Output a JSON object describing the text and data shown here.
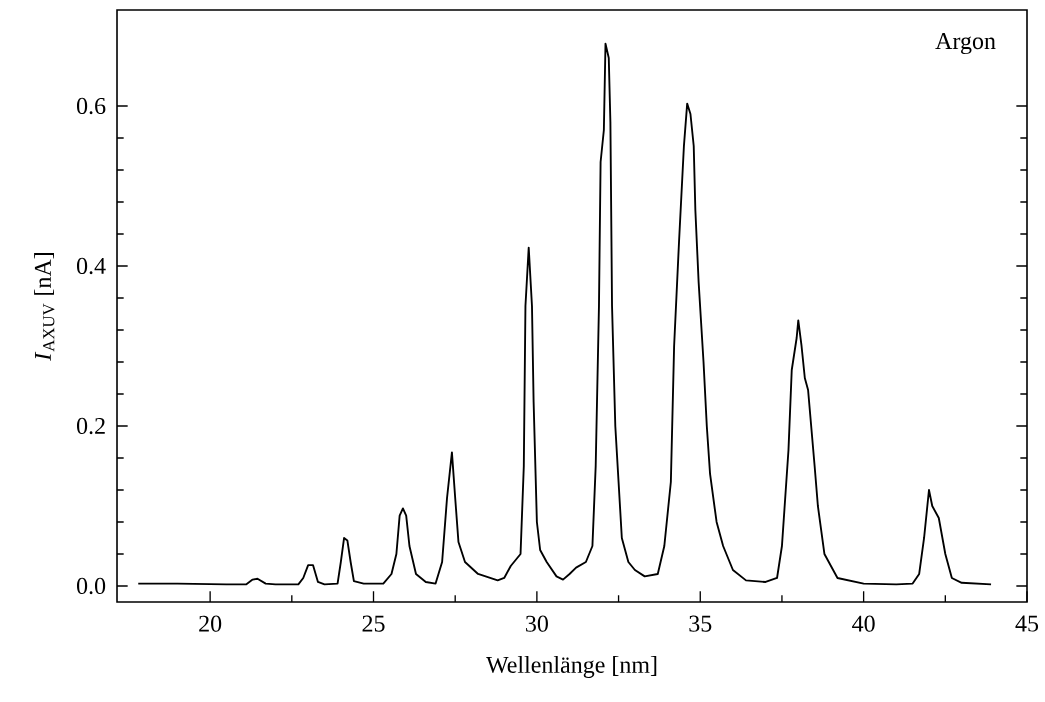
{
  "chart_data": {
    "type": "line",
    "xlabel": "Wellenlänge [nm]",
    "ylabel": "*I*$_{AXUV}$ [nA]",
    "annotations": [
      "Argon"
    ],
    "xlim": [
      17.15,
      45
    ],
    "ylim": [
      -0.02,
      0.72
    ],
    "xticks": [
      20,
      25,
      30,
      35,
      40,
      45
    ],
    "yticks": [
      {
        "value": 0,
        "label": "0.0"
      },
      {
        "value": 0.2,
        "label": "0.2"
      },
      {
        "value": 0.4,
        "label": "0.4"
      },
      {
        "value": 0.6,
        "label": "0.6"
      }
    ],
    "color": "#000000",
    "line_style": "solid",
    "grid": false,
    "x": [
      17.8,
      19.0,
      20.5,
      21.1,
      21.3,
      21.45,
      21.7,
      22.0,
      22.7,
      22.85,
      23.0,
      23.15,
      23.3,
      23.5,
      23.9,
      24.0,
      24.1,
      24.2,
      24.3,
      24.4,
      24.7,
      25.3,
      25.55,
      25.7,
      25.8,
      25.9,
      26.0,
      26.1,
      26.3,
      26.6,
      26.9,
      27.1,
      27.25,
      27.4,
      27.5,
      27.6,
      27.8,
      28.2,
      28.8,
      29.0,
      29.2,
      29.5,
      29.6,
      29.65,
      29.75,
      29.85,
      29.9,
      30.0,
      30.1,
      30.3,
      30.6,
      30.8,
      31.0,
      31.2,
      31.5,
      31.7,
      31.8,
      31.9,
      31.95,
      32.05,
      32.1,
      32.2,
      32.25,
      32.3,
      32.4,
      32.5,
      32.6,
      32.8,
      33.0,
      33.3,
      33.7,
      33.9,
      34.1,
      34.2,
      34.35,
      34.5,
      34.6,
      34.7,
      34.8,
      34.85,
      34.95,
      35.1,
      35.2,
      35.3,
      35.5,
      35.7,
      36.0,
      36.4,
      37.0,
      37.35,
      37.5,
      37.7,
      37.8,
      37.95,
      38.0,
      38.1,
      38.2,
      38.3,
      38.5,
      38.6,
      38.8,
      39.2,
      40.0,
      41.0,
      41.5,
      41.7,
      41.85,
      42.0,
      42.1,
      42.3,
      42.5,
      42.7,
      43.0,
      43.9
    ],
    "values": [
      0.003,
      0.003,
      0.002,
      0.002,
      0.008,
      0.009,
      0.003,
      0.002,
      0.002,
      0.01,
      0.026,
      0.026,
      0.005,
      0.002,
      0.003,
      0.03,
      0.06,
      0.057,
      0.03,
      0.006,
      0.003,
      0.003,
      0.015,
      0.04,
      0.088,
      0.097,
      0.088,
      0.05,
      0.015,
      0.005,
      0.003,
      0.03,
      0.11,
      0.167,
      0.11,
      0.055,
      0.03,
      0.015,
      0.007,
      0.01,
      0.025,
      0.04,
      0.15,
      0.35,
      0.423,
      0.35,
      0.23,
      0.08,
      0.045,
      0.03,
      0.012,
      0.008,
      0.015,
      0.023,
      0.03,
      0.05,
      0.15,
      0.35,
      0.53,
      0.57,
      0.678,
      0.66,
      0.58,
      0.35,
      0.2,
      0.13,
      0.06,
      0.03,
      0.02,
      0.012,
      0.015,
      0.05,
      0.13,
      0.3,
      0.43,
      0.55,
      0.603,
      0.59,
      0.55,
      0.47,
      0.38,
      0.28,
      0.2,
      0.14,
      0.08,
      0.05,
      0.02,
      0.007,
      0.005,
      0.01,
      0.05,
      0.17,
      0.27,
      0.31,
      0.332,
      0.3,
      0.26,
      0.245,
      0.15,
      0.1,
      0.04,
      0.01,
      0.003,
      0.002,
      0.003,
      0.015,
      0.06,
      0.12,
      0.1,
      0.085,
      0.04,
      0.01,
      0.004,
      0.002
    ]
  }
}
